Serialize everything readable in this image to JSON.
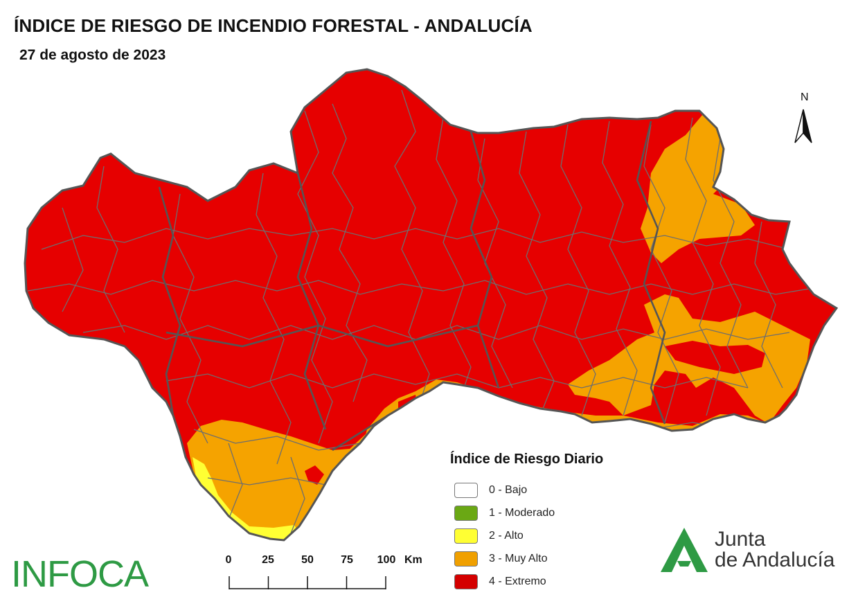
{
  "header": {
    "title": "ÍNDICE DE RIESGO DE INCENDIO FORESTAL - ANDALUCÍA",
    "date": "27 de agosto de 2023"
  },
  "north_arrow": {
    "label": "N"
  },
  "legend": {
    "title": "Índice de Riesgo Diario",
    "items": [
      {
        "label": "0 - Bajo",
        "color": "#ffffff"
      },
      {
        "label": "1 - Moderado",
        "color": "#6aa814"
      },
      {
        "label": "2 - Alto",
        "color": "#ffff33"
      },
      {
        "label": "3 - Muy Alto",
        "color": "#f0a000"
      },
      {
        "label": "4 - Extremo",
        "color": "#d40000"
      }
    ]
  },
  "scale_bar": {
    "ticks": [
      "0",
      "25",
      "50",
      "75",
      "100"
    ],
    "unit": "Km"
  },
  "logos": {
    "infoca": "INFOCA",
    "junta_line1": "Junta",
    "junta_line2": "de Andalucía"
  },
  "colors": {
    "extremo": "#e60000",
    "muy_alto": "#f5a300",
    "alto": "#ffff33",
    "border": "#6e6e6e",
    "brand_green": "#2e9a44"
  }
}
